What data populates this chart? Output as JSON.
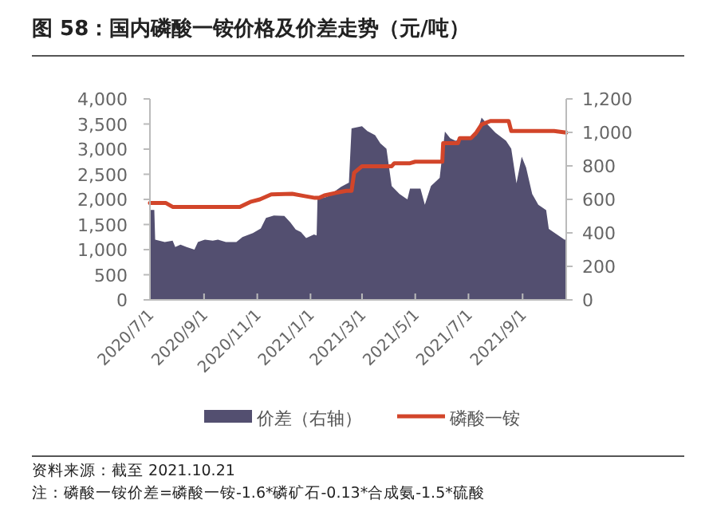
{
  "chart_data": {
    "type": "line",
    "title": "图 58：国内磷酸一铵价格及价差走势（元/吨）",
    "xlim": [
      "2020-07-01",
      "2021-10-21"
    ],
    "xticks": [
      {
        "value": "2020-07-01",
        "label": "2020/7/1"
      },
      {
        "value": "2020-09-01",
        "label": "2020/9/1"
      },
      {
        "value": "2020-11-01",
        "label": "2020/11/1"
      },
      {
        "value": "2021-01-01",
        "label": "2021/1/1"
      },
      {
        "value": "2021-03-01",
        "label": "2021/3/1"
      },
      {
        "value": "2021-05-01",
        "label": "2021/5/1"
      },
      {
        "value": "2021-07-01",
        "label": "2021/7/1"
      },
      {
        "value": "2021-09-01",
        "label": "2021/9/1"
      }
    ],
    "ylim": [
      0,
      4000
    ],
    "yticks": [
      0,
      500,
      {
        "value": 1000,
        "label": "1,000"
      },
      {
        "value": 1500,
        "label": "1,500"
      },
      {
        "value": 2000,
        "label": "2,000"
      },
      {
        "value": 2500,
        "label": "2,500"
      },
      {
        "value": 3000,
        "label": "3,000"
      },
      {
        "value": 3500,
        "label": "3,500"
      },
      {
        "value": 4000,
        "label": "4,000"
      }
    ],
    "y2lim": [
      0,
      1200
    ],
    "y2ticks": [
      0,
      200,
      400,
      600,
      800,
      {
        "value": 1000,
        "label": "1,000"
      },
      {
        "value": 1200,
        "label": "1,200"
      }
    ],
    "legend": "bottom",
    "series": [
      {
        "name": "价差（右轴）",
        "type": "area",
        "axis": "y2",
        "color": "#534f70",
        "x": [
          "2020-07-01",
          "2020-07-06",
          "2020-07-07",
          "2020-07-18",
          "2020-07-27",
          "2020-07-30",
          "2020-08-05",
          "2020-08-12",
          "2020-08-21",
          "2020-08-25",
          "2020-09-02",
          "2020-09-11",
          "2020-09-17",
          "2020-09-26",
          "2020-10-08",
          "2020-10-15",
          "2020-10-27",
          "2020-11-05",
          "2020-11-11",
          "2020-11-20",
          "2020-12-02",
          "2020-12-09",
          "2020-12-15",
          "2020-12-21",
          "2020-12-27",
          "2021-01-05",
          "2021-01-08",
          "2021-01-09",
          "2021-01-20",
          "2021-02-05",
          "2021-02-14",
          "2021-02-17",
          "2021-03-01",
          "2021-03-07",
          "2021-03-16",
          "2021-03-22",
          "2021-03-29",
          "2021-04-04",
          "2021-04-13",
          "2021-04-22",
          "2021-04-25",
          "2021-05-07",
          "2021-05-12",
          "2021-05-19",
          "2021-05-29",
          "2021-06-04",
          "2021-06-10",
          "2021-06-16",
          "2021-06-28",
          "2021-07-10",
          "2021-07-16",
          "2021-07-23",
          "2021-08-01",
          "2021-08-13",
          "2021-08-19",
          "2021-08-25",
          "2021-08-31",
          "2021-09-05",
          "2021-09-12",
          "2021-09-19",
          "2021-09-28",
          "2021-10-01",
          "2021-10-10",
          "2021-10-19",
          "2021-10-21"
        ],
        "values": [
          537,
          537,
          360,
          345,
          354,
          315,
          330,
          315,
          300,
          345,
          360,
          354,
          360,
          345,
          345,
          375,
          399,
          426,
          489,
          504,
          501,
          462,
          420,
          405,
          369,
          390,
          384,
          600,
          615,
          675,
          700,
          1024,
          1037,
          1008,
          983,
          935,
          903,
          680,
          632,
          600,
          664,
          664,
          568,
          680,
          728,
          1005,
          966,
          950,
          966,
          983,
          1088,
          1046,
          998,
          950,
          903,
          696,
          855,
          791,
          632,
          568,
          536,
          424,
          392,
          360,
          360
        ]
      },
      {
        "name": "磷酸一铵",
        "type": "line",
        "axis": "y",
        "color": "#d2452a",
        "x": [
          "2020-07-01",
          "2020-07-19",
          "2020-07-27",
          "2020-10-12",
          "2020-10-24",
          "2020-11-04",
          "2020-11-17",
          "2020-12-11",
          "2020-12-24",
          "2021-01-06",
          "2021-01-11",
          "2021-01-17",
          "2021-01-30",
          "2021-02-11",
          "2021-02-17",
          "2021-02-20",
          "2021-03-01",
          "2021-04-04",
          "2021-04-07",
          "2021-04-25",
          "2021-05-01",
          "2021-06-01",
          "2021-06-02",
          "2021-06-19",
          "2021-06-21",
          "2021-07-04",
          "2021-07-10",
          "2021-07-16",
          "2021-07-26",
          "2021-08-16",
          "2021-08-19",
          "2021-10-07",
          "2021-10-21"
        ],
        "values": [
          1930,
          1930,
          1850,
          1850,
          1950,
          2000,
          2100,
          2110,
          2070,
          2030,
          2030,
          2080,
          2130,
          2170,
          2170,
          2530,
          2660,
          2660,
          2720,
          2720,
          2750,
          2750,
          3120,
          3120,
          3220,
          3220,
          3330,
          3490,
          3560,
          3560,
          3360,
          3360,
          3330
        ]
      }
    ],
    "annotations": [
      "资料来源：截至 2021.10.21",
      "注：磷酸一铵价差=磷酸一铵-1.6*磷矿石-0.13*合成氨-1.5*硫酸"
    ]
  }
}
